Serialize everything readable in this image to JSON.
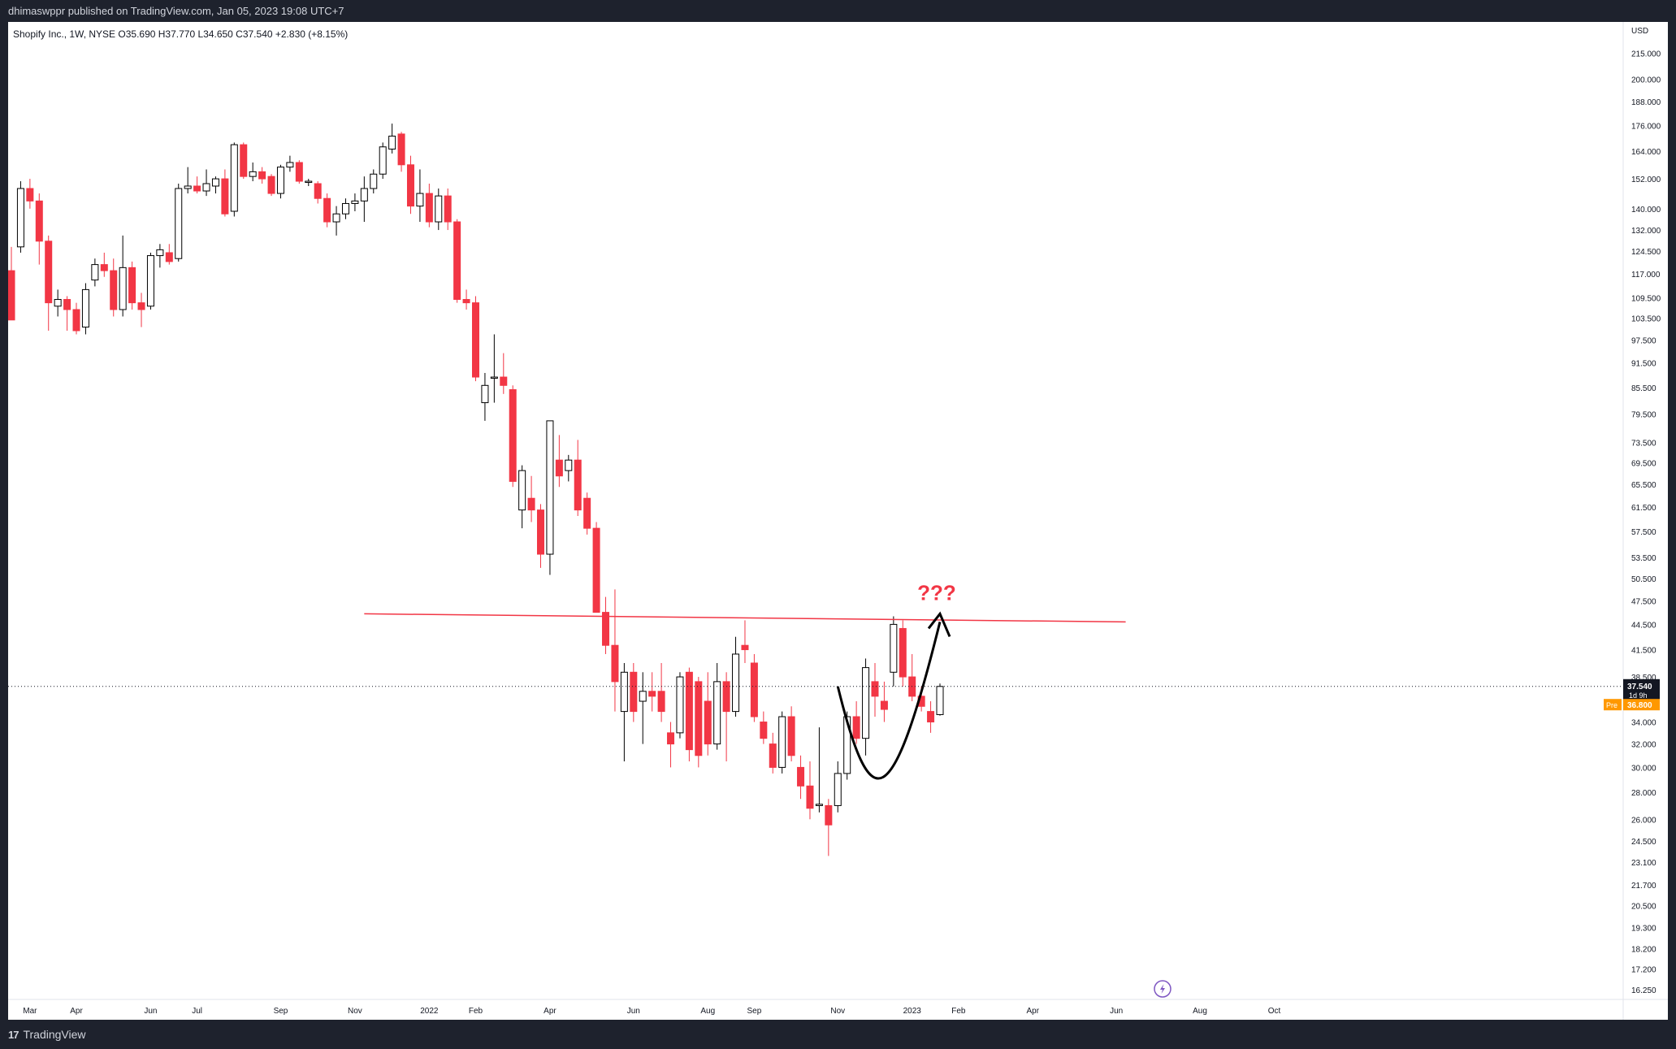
{
  "header": {
    "published_line": "dhimaswppr published on TradingView.com, Jan 05, 2023 19:08 UTC+7",
    "legend": "Shopify Inc., 1W, NYSE  O35.690  H37.770  L34.650  C37.540  +2.830 (+8.15%)"
  },
  "footer": {
    "brand": "TradingView",
    "logo_glyph": "17"
  },
  "price_scale": {
    "currency": "USD",
    "ticks": [
      "215.000",
      "200.000",
      "188.000",
      "176.000",
      "164.000",
      "152.000",
      "140.000",
      "132.000",
      "124.500",
      "117.000",
      "109.500",
      "103.500",
      "97.500",
      "91.500",
      "85.500",
      "79.500",
      "73.500",
      "69.500",
      "65.500",
      "61.500",
      "57.500",
      "53.500",
      "50.500",
      "47.500",
      "44.500",
      "41.500",
      "38.500",
      "34.000",
      "32.000",
      "30.000",
      "28.000",
      "26.000",
      "24.500",
      "23.100",
      "21.700",
      "20.500",
      "19.300",
      "18.200",
      "17.200",
      "16.250"
    ],
    "last_price": "37.540",
    "countdown": "1d 9h",
    "pre_label": "Pre",
    "pre_price": "36.800"
  },
  "time_axis": {
    "labels": [
      {
        "text": "Mar",
        "week": 2
      },
      {
        "text": "Apr",
        "week": 7
      },
      {
        "text": "Jun",
        "week": 15
      },
      {
        "text": "Jul",
        "week": 20
      },
      {
        "text": "Sep",
        "week": 29
      },
      {
        "text": "Nov",
        "week": 37
      },
      {
        "text": "2022",
        "week": 45
      },
      {
        "text": "Feb",
        "week": 50
      },
      {
        "text": "Apr",
        "week": 58
      },
      {
        "text": "Jun",
        "week": 67
      },
      {
        "text": "Aug",
        "week": 75
      },
      {
        "text": "Sep",
        "week": 80
      },
      {
        "text": "Nov",
        "week": 89
      },
      {
        "text": "2023",
        "week": 97
      },
      {
        "text": "Feb",
        "week": 102
      },
      {
        "text": "Apr",
        "week": 110
      },
      {
        "text": "Jun",
        "week": 119
      },
      {
        "text": "Aug",
        "week": 128
      },
      {
        "text": "Oct",
        "week": 136
      }
    ]
  },
  "annotations": {
    "question_text": "???",
    "resistance_price": 45.0,
    "line_color": "#f23645",
    "arc_color": "#000000"
  },
  "colors": {
    "up": "#ffffff",
    "up_border": "#000000",
    "down": "#f23645",
    "wick_up": "#000000",
    "wick_down": "#f23645"
  },
  "chart_data": {
    "type": "candlestick",
    "title": "Shopify Inc., 1W, NYSE",
    "ylabel": "USD",
    "y_scale": "log",
    "ylim": [
      16,
      224
    ],
    "candles": [
      {
        "o": 118,
        "h": 126,
        "l": 103,
        "c": 103
      },
      {
        "o": 126,
        "h": 151,
        "l": 124,
        "c": 148
      },
      {
        "o": 148,
        "h": 152,
        "l": 140,
        "c": 143
      },
      {
        "o": 143,
        "h": 146,
        "l": 120,
        "c": 128
      },
      {
        "o": 128,
        "h": 130,
        "l": 100,
        "c": 108
      },
      {
        "o": 107,
        "h": 112,
        "l": 104,
        "c": 109
      },
      {
        "o": 109,
        "h": 110,
        "l": 100,
        "c": 106
      },
      {
        "o": 106,
        "h": 108,
        "l": 99,
        "c": 100
      },
      {
        "o": 101,
        "h": 114,
        "l": 99,
        "c": 112
      },
      {
        "o": 115,
        "h": 122,
        "l": 113,
        "c": 120
      },
      {
        "o": 120,
        "h": 124,
        "l": 116,
        "c": 118
      },
      {
        "o": 118,
        "h": 122,
        "l": 104,
        "c": 106
      },
      {
        "o": 106,
        "h": 130,
        "l": 104,
        "c": 119
      },
      {
        "o": 119,
        "h": 121,
        "l": 106,
        "c": 108
      },
      {
        "o": 108,
        "h": 111,
        "l": 101,
        "c": 106
      },
      {
        "o": 107,
        "h": 124,
        "l": 106,
        "c": 123
      },
      {
        "o": 123,
        "h": 127,
        "l": 119,
        "c": 125
      },
      {
        "o": 124,
        "h": 127,
        "l": 120,
        "c": 121
      },
      {
        "o": 122,
        "h": 150,
        "l": 121,
        "c": 148
      },
      {
        "o": 148,
        "h": 157,
        "l": 146,
        "c": 149
      },
      {
        "o": 149,
        "h": 153,
        "l": 146,
        "c": 147
      },
      {
        "o": 147,
        "h": 156,
        "l": 145,
        "c": 150
      },
      {
        "o": 149,
        "h": 153,
        "l": 146,
        "c": 152
      },
      {
        "o": 152,
        "h": 156,
        "l": 137,
        "c": 138
      },
      {
        "o": 139,
        "h": 168,
        "l": 137,
        "c": 167
      },
      {
        "o": 167,
        "h": 168,
        "l": 152,
        "c": 153
      },
      {
        "o": 153,
        "h": 159,
        "l": 151,
        "c": 155
      },
      {
        "o": 155,
        "h": 157,
        "l": 150,
        "c": 152
      },
      {
        "o": 153,
        "h": 154,
        "l": 145,
        "c": 146
      },
      {
        "o": 146,
        "h": 158,
        "l": 144,
        "c": 157
      },
      {
        "o": 157,
        "h": 162,
        "l": 155,
        "c": 159
      },
      {
        "o": 159,
        "h": 160,
        "l": 150,
        "c": 151
      },
      {
        "o": 151,
        "h": 152,
        "l": 149,
        "c": 151
      },
      {
        "o": 150,
        "h": 151,
        "l": 142,
        "c": 144
      },
      {
        "o": 144,
        "h": 146,
        "l": 133,
        "c": 135
      },
      {
        "o": 135,
        "h": 141,
        "l": 130,
        "c": 138
      },
      {
        "o": 138,
        "h": 144,
        "l": 136,
        "c": 142
      },
      {
        "o": 142,
        "h": 146,
        "l": 139,
        "c": 143
      },
      {
        "o": 143,
        "h": 153,
        "l": 135,
        "c": 148
      },
      {
        "o": 148,
        "h": 156,
        "l": 146,
        "c": 154
      },
      {
        "o": 154,
        "h": 168,
        "l": 152,
        "c": 166
      },
      {
        "o": 165,
        "h": 177,
        "l": 163,
        "c": 171
      },
      {
        "o": 172,
        "h": 173,
        "l": 155,
        "c": 158
      },
      {
        "o": 158,
        "h": 162,
        "l": 138,
        "c": 141
      },
      {
        "o": 141,
        "h": 156,
        "l": 135,
        "c": 146
      },
      {
        "o": 146,
        "h": 150,
        "l": 133,
        "c": 135
      },
      {
        "o": 135,
        "h": 148,
        "l": 132,
        "c": 145
      },
      {
        "o": 145,
        "h": 148,
        "l": 132,
        "c": 135
      },
      {
        "o": 135,
        "h": 136,
        "l": 108,
        "c": 109
      },
      {
        "o": 109,
        "h": 112,
        "l": 106,
        "c": 108
      },
      {
        "o": 108,
        "h": 110,
        "l": 87,
        "c": 88
      },
      {
        "o": 82,
        "h": 89,
        "l": 78,
        "c": 86
      },
      {
        "o": 88,
        "h": 99,
        "l": 82,
        "c": 88
      },
      {
        "o": 88,
        "h": 94,
        "l": 84,
        "c": 86
      },
      {
        "o": 85,
        "h": 86,
        "l": 65,
        "c": 66
      },
      {
        "o": 61,
        "h": 69,
        "l": 58,
        "c": 68
      },
      {
        "o": 63,
        "h": 67,
        "l": 59,
        "c": 61
      },
      {
        "o": 61,
        "h": 62,
        "l": 52,
        "c": 54
      },
      {
        "o": 54,
        "h": 78,
        "l": 51,
        "c": 78
      },
      {
        "o": 70,
        "h": 75,
        "l": 65,
        "c": 67
      },
      {
        "o": 68,
        "h": 71,
        "l": 66,
        "c": 70
      },
      {
        "o": 70,
        "h": 74,
        "l": 60,
        "c": 61
      },
      {
        "o": 63,
        "h": 64,
        "l": 57,
        "c": 58
      },
      {
        "o": 58,
        "h": 59,
        "l": 46,
        "c": 46
      },
      {
        "o": 46,
        "h": 48,
        "l": 41,
        "c": 42
      },
      {
        "o": 42,
        "h": 49,
        "l": 35,
        "c": 38
      },
      {
        "o": 35,
        "h": 40,
        "l": 30.5,
        "c": 39
      },
      {
        "o": 39,
        "h": 40,
        "l": 34,
        "c": 35
      },
      {
        "o": 36,
        "h": 39,
        "l": 32,
        "c": 37
      },
      {
        "o": 37,
        "h": 39,
        "l": 35,
        "c": 36.5
      },
      {
        "o": 37,
        "h": 40,
        "l": 34,
        "c": 35
      },
      {
        "o": 33,
        "h": 34,
        "l": 30,
        "c": 32
      },
      {
        "o": 33,
        "h": 39,
        "l": 32.5,
        "c": 38.5
      },
      {
        "o": 39,
        "h": 39.5,
        "l": 30.5,
        "c": 31.5
      },
      {
        "o": 38,
        "h": 38.5,
        "l": 30,
        "c": 31
      },
      {
        "o": 36,
        "h": 39,
        "l": 31,
        "c": 32
      },
      {
        "o": 32,
        "h": 40,
        "l": 31.5,
        "c": 38
      },
      {
        "o": 38,
        "h": 39,
        "l": 30.5,
        "c": 35
      },
      {
        "o": 35,
        "h": 43,
        "l": 34.5,
        "c": 41
      },
      {
        "o": 42,
        "h": 45,
        "l": 40,
        "c": 41.5
      },
      {
        "o": 40,
        "h": 41,
        "l": 34,
        "c": 34.5
      },
      {
        "o": 34,
        "h": 35,
        "l": 32,
        "c": 32.5
      },
      {
        "o": 32,
        "h": 33,
        "l": 29.5,
        "c": 30
      },
      {
        "o": 30,
        "h": 35,
        "l": 29.5,
        "c": 34.5
      },
      {
        "o": 34.5,
        "h": 35.5,
        "l": 30.5,
        "c": 31
      },
      {
        "o": 30,
        "h": 31,
        "l": 27.5,
        "c": 28.5
      },
      {
        "o": 28.5,
        "h": 30.5,
        "l": 26,
        "c": 26.8
      },
      {
        "o": 27,
        "h": 33.5,
        "l": 26.5,
        "c": 27.1
      },
      {
        "o": 27,
        "h": 27.5,
        "l": 23.5,
        "c": 25.6
      },
      {
        "o": 27,
        "h": 30.5,
        "l": 26.5,
        "c": 29.5
      },
      {
        "o": 29.5,
        "h": 35,
        "l": 29,
        "c": 34.5
      },
      {
        "o": 34.5,
        "h": 36,
        "l": 32,
        "c": 32.5
      },
      {
        "o": 32.5,
        "h": 40.5,
        "l": 31,
        "c": 39.5
      },
      {
        "o": 38,
        "h": 40,
        "l": 34.5,
        "c": 36.5
      },
      {
        "o": 36,
        "h": 38,
        "l": 34,
        "c": 35.2
      },
      {
        "o": 39,
        "h": 45.5,
        "l": 37.5,
        "c": 44.5
      },
      {
        "o": 44,
        "h": 45,
        "l": 37.5,
        "c": 38.5
      },
      {
        "o": 38.5,
        "h": 41,
        "l": 36,
        "c": 36.5
      },
      {
        "o": 36.5,
        "h": 37.5,
        "l": 35,
        "c": 35.5
      },
      {
        "o": 35,
        "h": 36,
        "l": 33,
        "c": 34
      },
      {
        "o": 34.7,
        "h": 37.8,
        "l": 34.6,
        "c": 37.5
      }
    ]
  }
}
